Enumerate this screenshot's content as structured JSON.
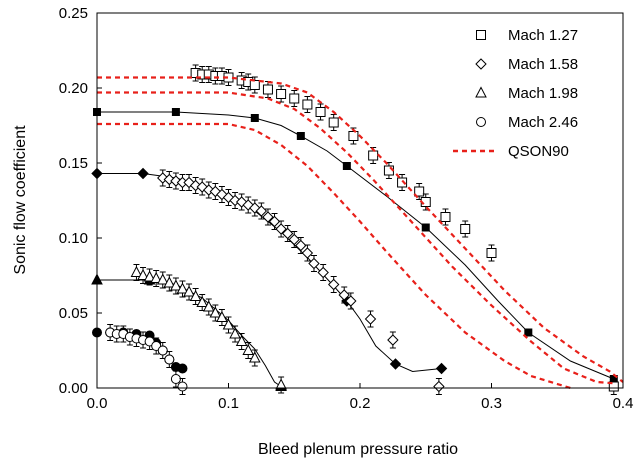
{
  "chart_data": {
    "type": "scatter",
    "title": "",
    "xlabel": "Bleed plenum pressure ratio",
    "ylabel": "Sonic flow coefficient",
    "xlim": [
      0,
      0.4
    ],
    "ylim": [
      0,
      0.25
    ],
    "xticks": [
      0.0,
      0.1,
      0.2,
      0.3,
      0.4
    ],
    "yticks": [
      0.0,
      0.05,
      0.1,
      0.15,
      0.2,
      0.25
    ],
    "xtick_labels": [
      "0.0",
      "0.1",
      "0.2",
      "0.3",
      "0.4"
    ],
    "ytick_labels": [
      "0.00",
      "0.05",
      "0.10",
      "0.15",
      "0.20",
      "0.25"
    ],
    "grid": false,
    "legend_position": "top-right",
    "series": [
      {
        "name": "Mach 1.27",
        "marker": "open-square",
        "points": [
          [
            0.075,
            0.21
          ],
          [
            0.08,
            0.209
          ],
          [
            0.085,
            0.209
          ],
          [
            0.09,
            0.208
          ],
          [
            0.095,
            0.208
          ],
          [
            0.1,
            0.207
          ],
          [
            0.11,
            0.205
          ],
          [
            0.115,
            0.204
          ],
          [
            0.12,
            0.202
          ],
          [
            0.13,
            0.199
          ],
          [
            0.14,
            0.196
          ],
          [
            0.15,
            0.193
          ],
          [
            0.16,
            0.189
          ],
          [
            0.17,
            0.184
          ],
          [
            0.18,
            0.177
          ],
          [
            0.195,
            0.168
          ],
          [
            0.21,
            0.155
          ],
          [
            0.222,
            0.145
          ],
          [
            0.232,
            0.137
          ],
          [
            0.245,
            0.131
          ],
          [
            0.25,
            0.124
          ],
          [
            0.265,
            0.114
          ],
          [
            0.28,
            0.106
          ],
          [
            0.3,
            0.09
          ],
          [
            0.393,
            0.001
          ]
        ],
        "fit": [
          [
            0.0,
            0.184
          ],
          [
            0.06,
            0.184
          ],
          [
            0.1,
            0.182
          ],
          [
            0.12,
            0.18
          ],
          [
            0.14,
            0.175
          ],
          [
            0.155,
            0.168
          ],
          [
            0.175,
            0.158
          ],
          [
            0.19,
            0.148
          ],
          [
            0.22,
            0.128
          ],
          [
            0.25,
            0.107
          ],
          [
            0.28,
            0.082
          ],
          [
            0.305,
            0.058
          ],
          [
            0.328,
            0.037
          ],
          [
            0.36,
            0.018
          ],
          [
            0.393,
            0.006
          ]
        ],
        "fit_markers": [
          [
            0.0,
            0.184
          ],
          [
            0.06,
            0.184
          ],
          [
            0.12,
            0.18
          ],
          [
            0.155,
            0.168
          ],
          [
            0.19,
            0.148
          ],
          [
            0.25,
            0.107
          ],
          [
            0.328,
            0.037
          ],
          [
            0.393,
            0.006
          ]
        ]
      },
      {
        "name": "Mach 1.58",
        "marker": "open-diamond",
        "points": [
          [
            0.05,
            0.14
          ],
          [
            0.055,
            0.139
          ],
          [
            0.06,
            0.138
          ],
          [
            0.065,
            0.137
          ],
          [
            0.07,
            0.137
          ],
          [
            0.075,
            0.135
          ],
          [
            0.08,
            0.134
          ],
          [
            0.085,
            0.132
          ],
          [
            0.09,
            0.131
          ],
          [
            0.095,
            0.129
          ],
          [
            0.1,
            0.127
          ],
          [
            0.105,
            0.125
          ],
          [
            0.11,
            0.124
          ],
          [
            0.115,
            0.122
          ],
          [
            0.12,
            0.12
          ],
          [
            0.125,
            0.118
          ],
          [
            0.13,
            0.114
          ],
          [
            0.135,
            0.111
          ],
          [
            0.14,
            0.106
          ],
          [
            0.145,
            0.103
          ],
          [
            0.15,
            0.099
          ],
          [
            0.155,
            0.095
          ],
          [
            0.16,
            0.09
          ],
          [
            0.165,
            0.083
          ],
          [
            0.172,
            0.077
          ],
          [
            0.18,
            0.069
          ],
          [
            0.188,
            0.062
          ],
          [
            0.193,
            0.058
          ],
          [
            0.208,
            0.046
          ],
          [
            0.225,
            0.032
          ],
          [
            0.26,
            0.001
          ]
        ],
        "fit": [
          [
            0.0,
            0.143
          ],
          [
            0.035,
            0.143
          ],
          [
            0.06,
            0.14
          ],
          [
            0.08,
            0.135
          ],
          [
            0.1,
            0.128
          ],
          [
            0.12,
            0.118
          ],
          [
            0.14,
            0.104
          ],
          [
            0.16,
            0.087
          ],
          [
            0.18,
            0.068
          ],
          [
            0.19,
            0.058
          ],
          [
            0.2,
            0.046
          ],
          [
            0.212,
            0.028
          ],
          [
            0.227,
            0.016
          ],
          [
            0.24,
            0.011
          ],
          [
            0.262,
            0.013
          ]
        ],
        "fit_markers": [
          [
            0.0,
            0.143
          ],
          [
            0.035,
            0.143
          ],
          [
            0.19,
            0.058
          ],
          [
            0.227,
            0.016
          ],
          [
            0.262,
            0.013
          ]
        ]
      },
      {
        "name": "Mach 1.98",
        "marker": "open-triangle",
        "points": [
          [
            0.03,
            0.077
          ],
          [
            0.035,
            0.075
          ],
          [
            0.04,
            0.074
          ],
          [
            0.045,
            0.073
          ],
          [
            0.05,
            0.072
          ],
          [
            0.055,
            0.07
          ],
          [
            0.06,
            0.068
          ],
          [
            0.065,
            0.066
          ],
          [
            0.07,
            0.064
          ],
          [
            0.075,
            0.061
          ],
          [
            0.08,
            0.057
          ],
          [
            0.085,
            0.054
          ],
          [
            0.09,
            0.05
          ],
          [
            0.095,
            0.047
          ],
          [
            0.1,
            0.042
          ],
          [
            0.105,
            0.036
          ],
          [
            0.11,
            0.031
          ],
          [
            0.115,
            0.025
          ],
          [
            0.12,
            0.02
          ],
          [
            0.14,
            0.002
          ]
        ],
        "fit": [
          [
            0.0,
            0.072
          ],
          [
            0.04,
            0.072
          ],
          [
            0.06,
            0.069
          ],
          [
            0.08,
            0.06
          ],
          [
            0.1,
            0.045
          ],
          [
            0.11,
            0.035
          ],
          [
            0.12,
            0.026
          ],
          [
            0.128,
            0.015
          ],
          [
            0.135,
            0.004
          ],
          [
            0.14,
            0.001
          ]
        ],
        "fit_markers": [
          [
            0.0,
            0.072
          ],
          [
            0.04,
            0.072
          ],
          [
            0.14,
            0.001
          ]
        ]
      },
      {
        "name": "Mach 2.46",
        "marker": "open-circle",
        "points": [
          [
            0.01,
            0.037
          ],
          [
            0.015,
            0.036
          ],
          [
            0.02,
            0.036
          ],
          [
            0.025,
            0.034
          ],
          [
            0.03,
            0.033
          ],
          [
            0.035,
            0.032
          ],
          [
            0.04,
            0.031
          ],
          [
            0.045,
            0.028
          ],
          [
            0.05,
            0.025
          ],
          [
            0.055,
            0.019
          ],
          [
            0.06,
            0.006
          ],
          [
            0.065,
            0.001
          ]
        ],
        "fit": [],
        "fit_markers": [
          [
            0.0,
            0.037
          ],
          [
            0.01,
            0.037
          ],
          [
            0.02,
            0.037
          ],
          [
            0.03,
            0.036
          ],
          [
            0.04,
            0.035
          ],
          [
            0.045,
            0.03
          ],
          [
            0.05,
            0.025
          ],
          [
            0.055,
            0.019
          ],
          [
            0.06,
            0.014
          ],
          [
            0.065,
            0.013
          ]
        ]
      },
      {
        "name": "QSON90",
        "marker": "dashed-line",
        "color": "#e8201a",
        "curves": [
          [
            [
              0.0,
              0.207
            ],
            [
              0.1,
              0.207
            ],
            [
              0.14,
              0.203
            ],
            [
              0.16,
              0.197
            ],
            [
              0.18,
              0.184
            ],
            [
              0.2,
              0.168
            ],
            [
              0.22,
              0.15
            ],
            [
              0.25,
              0.121
            ],
            [
              0.28,
              0.093
            ],
            [
              0.31,
              0.065
            ],
            [
              0.34,
              0.04
            ],
            [
              0.37,
              0.021
            ],
            [
              0.39,
              0.011
            ],
            [
              0.4,
              0.004
            ]
          ],
          [
            [
              0.0,
              0.197
            ],
            [
              0.1,
              0.197
            ],
            [
              0.13,
              0.193
            ],
            [
              0.15,
              0.186
            ],
            [
              0.17,
              0.173
            ],
            [
              0.19,
              0.157
            ],
            [
              0.21,
              0.139
            ],
            [
              0.24,
              0.11
            ],
            [
              0.27,
              0.081
            ],
            [
              0.3,
              0.055
            ],
            [
              0.33,
              0.031
            ],
            [
              0.355,
              0.013
            ],
            [
              0.38,
              0.004
            ],
            [
              0.395,
              0.003
            ]
          ],
          [
            [
              0.0,
              0.176
            ],
            [
              0.1,
              0.176
            ],
            [
              0.12,
              0.172
            ],
            [
              0.14,
              0.162
            ],
            [
              0.16,
              0.148
            ],
            [
              0.18,
              0.13
            ],
            [
              0.2,
              0.111
            ],
            [
              0.22,
              0.091
            ],
            [
              0.25,
              0.062
            ],
            [
              0.28,
              0.037
            ],
            [
              0.31,
              0.018
            ],
            [
              0.33,
              0.008
            ],
            [
              0.36,
              0.0
            ]
          ]
        ]
      }
    ]
  }
}
